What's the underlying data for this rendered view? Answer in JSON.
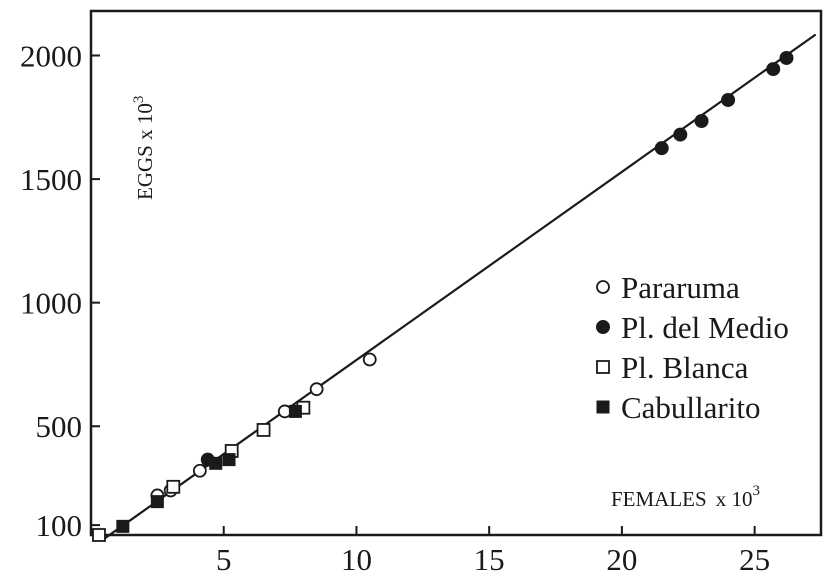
{
  "chart_data": {
    "type": "scatter",
    "title": "",
    "xlabel": "FEMALES",
    "xlabel_suffix": "x 10",
    "xlabel_exponent": "3",
    "ylabel": "EGGS x 10",
    "ylabel_exponent": "3",
    "xlim": [
      0,
      27.5
    ],
    "ylim": [
      60,
      2180
    ],
    "x_ticks": [
      5,
      10,
      15,
      20,
      25
    ],
    "x_tick_labels": [
      "5",
      "10",
      "15",
      "20",
      "25"
    ],
    "y_ticks": [
      100,
      500,
      1000,
      1500,
      2000
    ],
    "y_tick_labels": [
      "100",
      "500",
      "1000",
      "1500",
      "2000"
    ],
    "grid": false,
    "legend_position": "right",
    "series": [
      {
        "name": "Pararuma",
        "marker": "open-circle",
        "color": "#1a1a1a",
        "points": [
          {
            "x": 2.5,
            "y": 220
          },
          {
            "x": 3.0,
            "y": 240
          },
          {
            "x": 4.1,
            "y": 320
          },
          {
            "x": 7.3,
            "y": 560
          },
          {
            "x": 8.5,
            "y": 650
          },
          {
            "x": 10.5,
            "y": 770
          }
        ]
      },
      {
        "name": "Pl. del Medio",
        "marker": "filled-circle",
        "color": "#1a1a1a",
        "points": [
          {
            "x": 4.4,
            "y": 365
          },
          {
            "x": 21.5,
            "y": 1625
          },
          {
            "x": 22.2,
            "y": 1680
          },
          {
            "x": 23.0,
            "y": 1735
          },
          {
            "x": 24.0,
            "y": 1820
          },
          {
            "x": 25.7,
            "y": 1945
          },
          {
            "x": 26.2,
            "y": 1990
          }
        ]
      },
      {
        "name": "Pl. Blanca",
        "marker": "open-square",
        "color": "#1a1a1a",
        "points": [
          {
            "x": 0.3,
            "y": 60
          },
          {
            "x": 3.1,
            "y": 255
          },
          {
            "x": 5.3,
            "y": 400
          },
          {
            "x": 6.5,
            "y": 485
          },
          {
            "x": 8.0,
            "y": 575
          }
        ]
      },
      {
        "name": "Cabullarito",
        "marker": "filled-square",
        "color": "#1a1a1a",
        "points": [
          {
            "x": 1.2,
            "y": 95
          },
          {
            "x": 2.5,
            "y": 195
          },
          {
            "x": 4.7,
            "y": 350
          },
          {
            "x": 5.2,
            "y": 365
          },
          {
            "x": 7.7,
            "y": 560
          }
        ]
      }
    ],
    "fit_line": {
      "x": [
        0.5,
        27.3
      ],
      "y": [
        45,
        2085
      ]
    }
  }
}
